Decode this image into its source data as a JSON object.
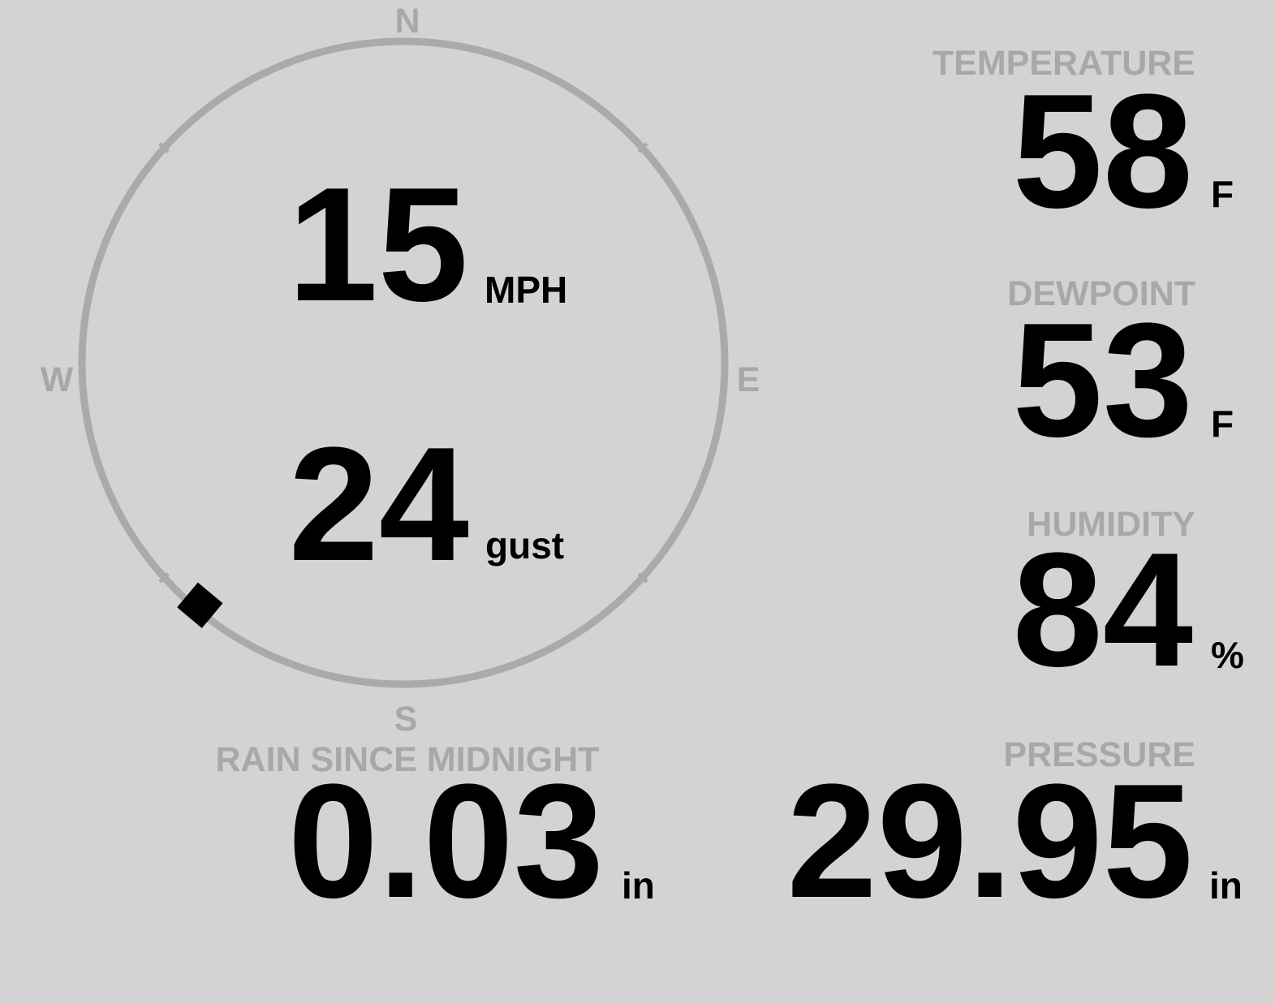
{
  "wind": {
    "compass": {
      "north": "N",
      "east": "E",
      "south": "S",
      "west": "W"
    },
    "speed": "15",
    "speed_unit": "MPH",
    "gust": "24",
    "gust_label": "gust",
    "direction_deg": 220
  },
  "temperature": {
    "label": "TEMPERATURE",
    "value": "58",
    "unit": "F"
  },
  "dewpoint": {
    "label": "DEWPOINT",
    "value": "53",
    "unit": "F"
  },
  "humidity": {
    "label": "HUMIDITY",
    "value": "84",
    "unit": "%"
  },
  "rain": {
    "label": "RAIN SINCE MIDNIGHT",
    "value": "0.03",
    "unit": "in"
  },
  "pressure": {
    "label": "PRESSURE",
    "value": "29.95",
    "unit": "in"
  }
}
